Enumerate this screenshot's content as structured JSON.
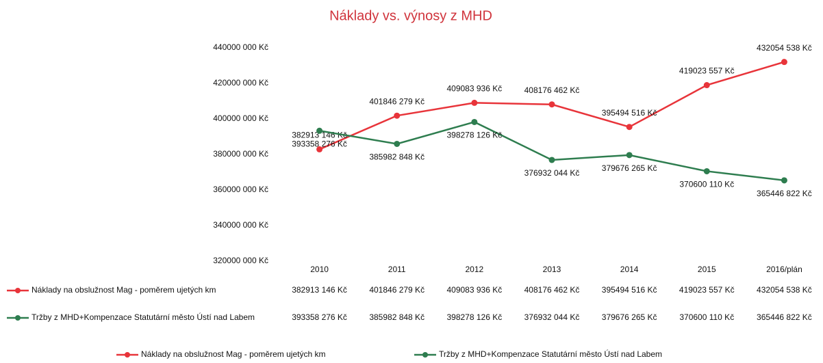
{
  "chart_data": {
    "type": "line",
    "title": "Náklady vs. výnosy z MHD",
    "categories": [
      "2010",
      "2011",
      "2012",
      "2013",
      "2014",
      "2015",
      "2016/plán"
    ],
    "series": [
      {
        "name": "Náklady na obslužnost Mag - poměrem ujetých km",
        "color": "#e8343a",
        "values": [
          382913146,
          401846279,
          409083936,
          408176462,
          395494516,
          419023557,
          432054538
        ],
        "value_labels": [
          "382913 146 Kč",
          "401846 279 Kč",
          "409083 936 Kč",
          "408176 462 Kč",
          "395494 516 Kč",
          "419023 557 Kč",
          "432054 538 Kč"
        ]
      },
      {
        "name": "Tržby z MHD+Kompenzace Statutární město Ústí nad Labem",
        "color": "#2e7d4f",
        "values": [
          393358276,
          385982848,
          398278126,
          376932044,
          379676265,
          370600110,
          365446822
        ],
        "value_labels": [
          "393358 276 Kč",
          "385982 848 Kč",
          "398278 126 Kč",
          "376932 044 Kč",
          "379676 265 Kč",
          "370600 110 Kč",
          "365446 822 Kč"
        ]
      }
    ],
    "ylim": [
      320000000,
      440000000
    ],
    "yticks": [
      {
        "value": 320000000,
        "label": "320000 000 Kč"
      },
      {
        "value": 340000000,
        "label": "340000 000 Kč"
      },
      {
        "value": 360000000,
        "label": "360000 000 Kč"
      },
      {
        "value": 380000000,
        "label": "380000 000 Kč"
      },
      {
        "value": 400000000,
        "label": "400000 000 Kč"
      },
      {
        "value": 420000000,
        "label": "420000 000 Kč"
      },
      {
        "value": 440000000,
        "label": "440000 000 Kč"
      }
    ],
    "grid": false,
    "legend": "bottom"
  }
}
